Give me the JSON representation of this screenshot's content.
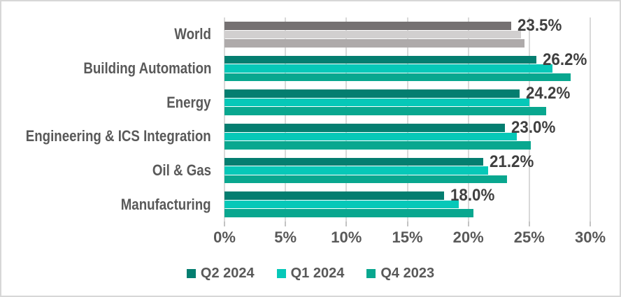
{
  "chart_data": {
    "type": "bar",
    "orientation": "horizontal-grouped",
    "title": "",
    "categories": [
      "World",
      "Building Automation",
      "Energy",
      "Engineering & ICS Integration",
      "Oil & Gas",
      "Manufacturing"
    ],
    "series": [
      {
        "name": "Q2 2024",
        "color": "#047E70",
        "world_color": "#757172",
        "values": [
          23.5,
          26.2,
          24.2,
          23.0,
          21.2,
          18.0
        ]
      },
      {
        "name": "Q1 2024",
        "color": "#06C8B8",
        "world_color": "#D1CFCF",
        "values": [
          24.3,
          26.9,
          25.0,
          24.0,
          21.6,
          19.2
        ]
      },
      {
        "name": "Q4 2023",
        "color": "#09A78F",
        "world_color": "#AEAAAA",
        "values": [
          24.6,
          28.4,
          26.4,
          25.1,
          23.2,
          20.4
        ]
      }
    ],
    "data_labels": [
      "23.5%",
      "26.2%",
      "24.2%",
      "23.0%",
      "21.2%",
      "18.0%"
    ],
    "data_label_series": "Q2 2024",
    "x_axis": {
      "min": 0,
      "max": 30,
      "tick_values": [
        0,
        5,
        10,
        15,
        20,
        25,
        30
      ],
      "tick_labels": [
        "0%",
        "5%",
        "10%",
        "15%",
        "20%",
        "25%",
        "30%"
      ],
      "gridlines": true
    },
    "legend": {
      "position": "bottom",
      "entries": [
        "Q2 2024",
        "Q1 2024",
        "Q4 2023"
      ]
    }
  },
  "colors": {
    "background": "#FFFFFF",
    "border": "#D7D7D7",
    "gridline": "#D9D9D9",
    "tick": "#C3C3C3",
    "axis_text": "#595959",
    "category_text": "#595959",
    "data_label_text": "#3F3F3F",
    "legend_text": "#595959"
  }
}
